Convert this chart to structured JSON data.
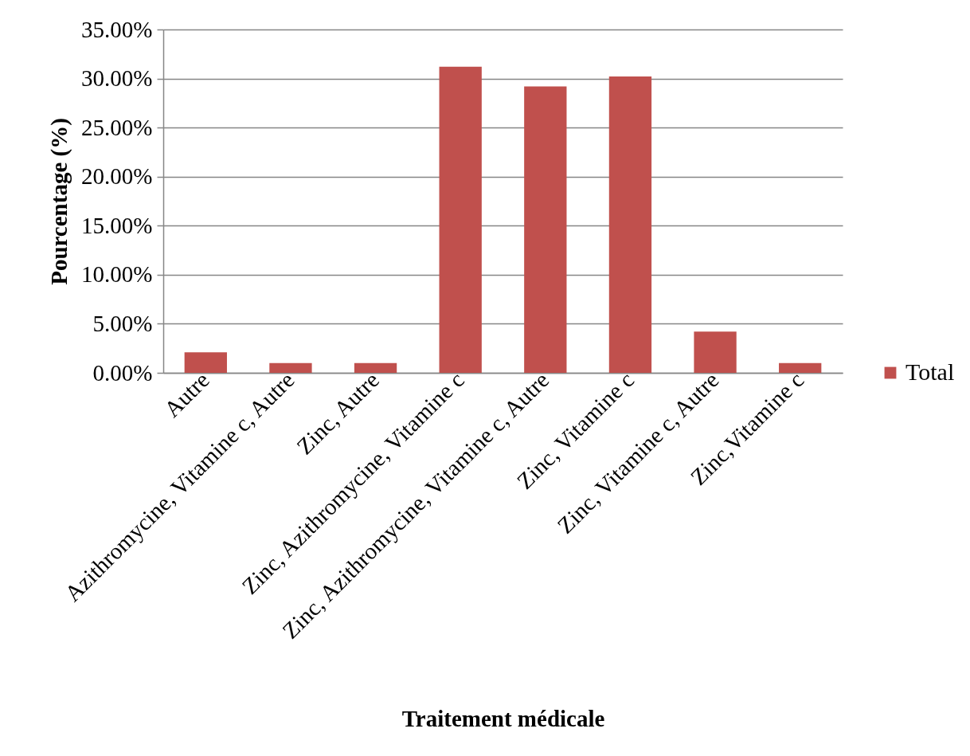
{
  "chart_data": {
    "type": "bar",
    "xlabel": "Traitement médicale",
    "ylabel": "Pourcentage (%)",
    "categories": [
      "Autre",
      "Azithromycine, Vitamine c, Autre",
      "Zinc, Autre",
      "Zinc, Azithromycine, Vitamine c",
      "Zinc, Azithromycine, Vitamine c, Autre",
      "Zinc, Vitamine c",
      "Zinc, Vitamine c, Autre",
      "Zinc,Vitamine c"
    ],
    "series": [
      {
        "name": "Total",
        "color": "#c0504d",
        "values": [
          2.1,
          1.0,
          1.0,
          31.2,
          29.2,
          30.2,
          4.2,
          1.0
        ]
      }
    ],
    "ylim": [
      0,
      35
    ],
    "yticks": [
      {
        "value": 0,
        "label": "0.00%"
      },
      {
        "value": 5,
        "label": "5.00%"
      },
      {
        "value": 10,
        "label": "10.00%"
      },
      {
        "value": 15,
        "label": "15.00%"
      },
      {
        "value": 20,
        "label": "20.00%"
      },
      {
        "value": 25,
        "label": "25.00%"
      },
      {
        "value": 30,
        "label": "30.00%"
      },
      {
        "value": 35,
        "label": "35.00%"
      }
    ],
    "grid": "y",
    "legend": "right"
  }
}
